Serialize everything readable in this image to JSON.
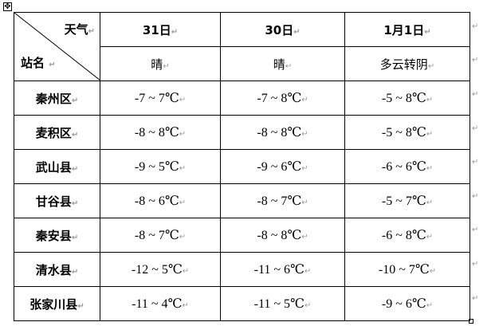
{
  "header": {
    "corner_top_right": "天气",
    "corner_bottom_left": "站名",
    "dates": [
      "31日",
      "30日",
      "1月1日"
    ],
    "weather": [
      "晴",
      "晴",
      "多云转阴"
    ]
  },
  "rows": [
    {
      "station": "秦州区",
      "temps": [
        "-7 ~ 7℃",
        "-7 ~ 8℃",
        "-5 ~ 8℃"
      ]
    },
    {
      "station": "麦积区",
      "temps": [
        "-8 ~ 8℃",
        "-8 ~ 8℃",
        "-5 ~ 8℃"
      ]
    },
    {
      "station": "武山县",
      "temps": [
        "-9 ~ 5℃",
        "-9 ~ 6℃",
        "-6 ~ 6℃"
      ]
    },
    {
      "station": "甘谷县",
      "temps": [
        "-8 ~ 6℃",
        "-8 ~ 7℃",
        "-5 ~ 7℃"
      ]
    },
    {
      "station": "秦安县",
      "temps": [
        "-8 ~ 7℃",
        "-8 ~ 8℃",
        "-6 ~ 8℃"
      ]
    },
    {
      "station": "清水县",
      "temps": [
        "-12 ~ 5℃",
        "-11 ~ 6℃",
        "-10 ~ 7℃"
      ]
    },
    {
      "station": "张家川县",
      "temps": [
        "-11 ~ 4℃",
        "-11 ~ 5℃",
        "-9 ~ 6℃"
      ]
    }
  ],
  "marks": {
    "paragraph": "↵",
    "move": "✥"
  }
}
